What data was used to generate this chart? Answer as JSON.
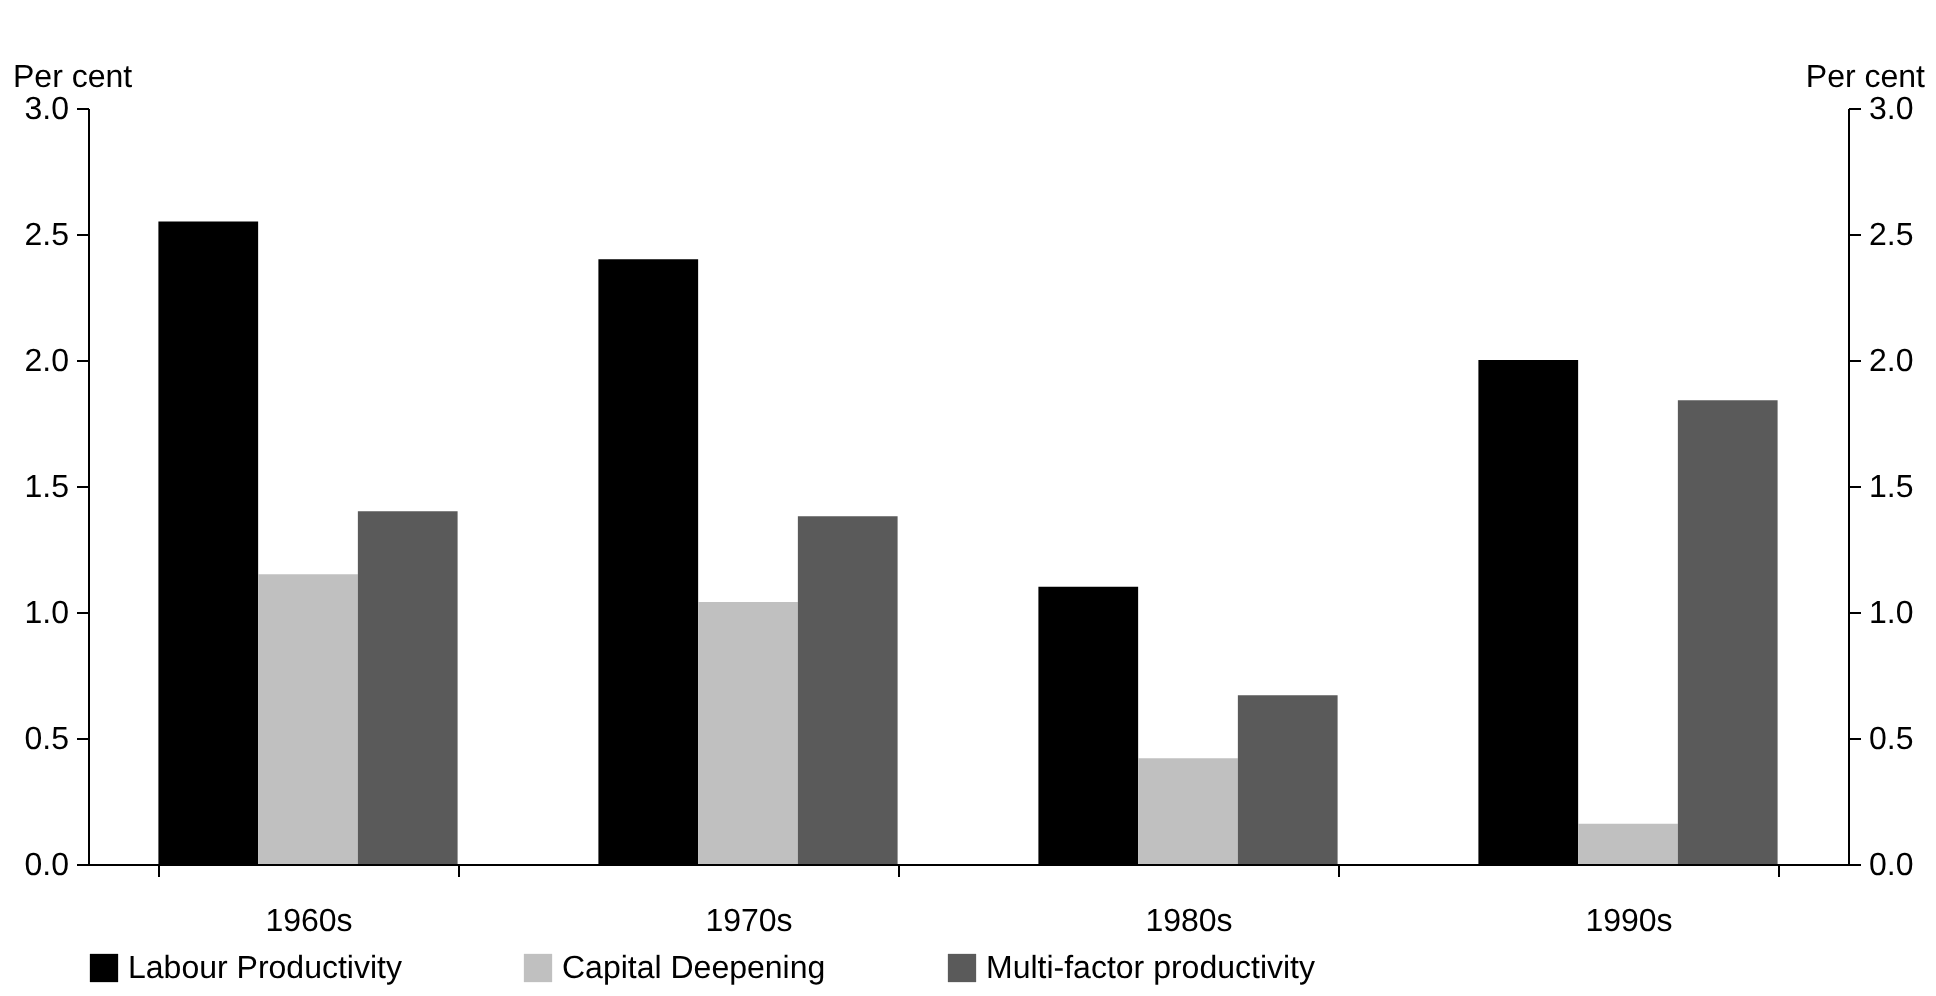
{
  "chart_data": {
    "type": "bar",
    "ylabel": "Per cent",
    "y2label": "Per cent",
    "categories": [
      "1960s",
      "1970s",
      "1980s",
      "1990s"
    ],
    "series": [
      {
        "name": "Labour Productivity",
        "color": "#000000",
        "values": [
          2.55,
          2.4,
          1.1,
          2.0
        ]
      },
      {
        "name": "Capital Deepening",
        "color": "#c0c0c0",
        "values": [
          1.15,
          1.04,
          0.42,
          0.16
        ]
      },
      {
        "name": "Multi-factor productivity",
        "color": "#5a5a5a",
        "values": [
          1.4,
          1.38,
          0.67,
          1.84
        ]
      }
    ],
    "ylim": [
      0,
      3
    ],
    "yticks": [
      {
        "value": 0,
        "label": "0.0"
      },
      {
        "value": 0.5,
        "label": "0.5"
      },
      {
        "value": 1,
        "label": "1.0"
      },
      {
        "value": 1.5,
        "label": "1.5"
      },
      {
        "value": 2,
        "label": "2.0"
      },
      {
        "value": 2.5,
        "label": "2.5"
      },
      {
        "value": 3,
        "label": "3.0"
      }
    ],
    "y2lim": [
      0,
      3
    ],
    "y2ticks": [
      {
        "value": 0,
        "label": "0.0"
      },
      {
        "value": 0.5,
        "label": "0.5"
      },
      {
        "value": 1,
        "label": "1.0"
      },
      {
        "value": 1.5,
        "label": "1.5"
      },
      {
        "value": 2,
        "label": "2.0"
      },
      {
        "value": 2.5,
        "label": "2.5"
      },
      {
        "value": 3,
        "label": "3.0"
      }
    ],
    "legend": "bottom",
    "grid": false
  }
}
